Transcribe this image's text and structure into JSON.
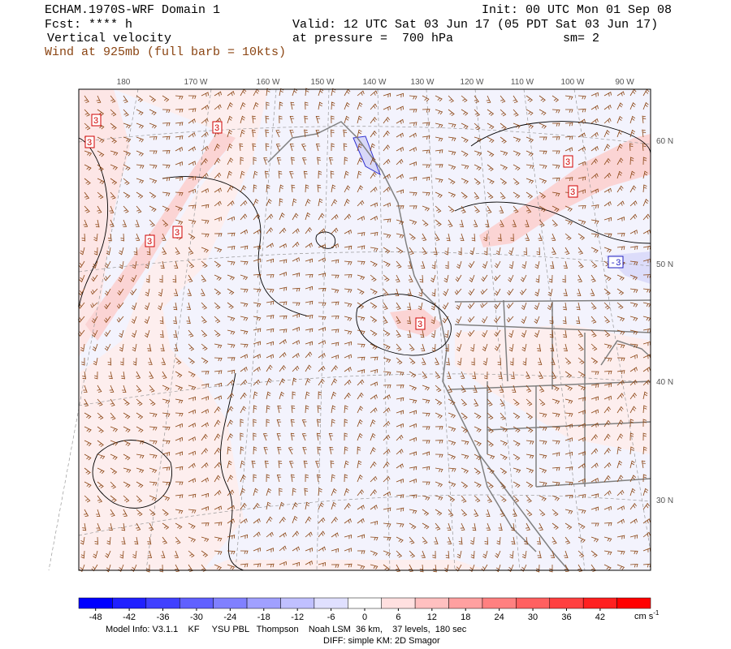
{
  "header": {
    "title": "ECHAM.1970S-WRF Domain 1",
    "init": "Init: 00 UTC Mon 01 Sep 08",
    "forecast": "Fcst: **** h",
    "valid": "Valid: 12 UTC Sat 03 Jun 17 (05 PDT Sat 03 Jun 17)",
    "field": "Vertical velocity",
    "level": "at pressure =  700 hPa",
    "smoothing": "sm= 2",
    "wind": "Wind at 925mb (full barb = 10kts)"
  },
  "map": {
    "longitude_labels": [
      "180",
      "170 W",
      "160 W",
      "150 W",
      "140 W",
      "130 W",
      "120 W",
      "110 W",
      "100 W",
      "90 W"
    ],
    "latitude_labels": [
      "60 N",
      "50 N",
      "40 N",
      "30 N"
    ],
    "contour_labels": [
      "3",
      "3",
      "3",
      "3",
      "3",
      "3",
      "3",
      "3",
      "-3"
    ]
  },
  "colorbar": {
    "range": [
      -51,
      51
    ],
    "ticks": [
      -48,
      -42,
      -36,
      -30,
      -24,
      -18,
      -12,
      -6,
      0,
      6,
      12,
      18,
      24,
      30,
      36,
      42
    ],
    "colors": [
      "#0000ff",
      "#2020ff",
      "#4040ff",
      "#6060ff",
      "#8080ff",
      "#a0a0ff",
      "#c0c0ff",
      "#e0e0ff",
      "#ffffff",
      "#ffe0e0",
      "#ffc0c0",
      "#ffa0a0",
      "#ff8080",
      "#ff6060",
      "#ff4040",
      "#ff2020",
      "#ff0000"
    ],
    "units": "cm s",
    "units_exponent": "-1"
  },
  "footer": {
    "model_info": "Model Info: V3.1.1    KF     YSU PBL   Thompson    Noah LSM  36 km,    37 levels,  180 sec",
    "diffusion": "DIFF: simple KM: 2D Smagor"
  }
}
